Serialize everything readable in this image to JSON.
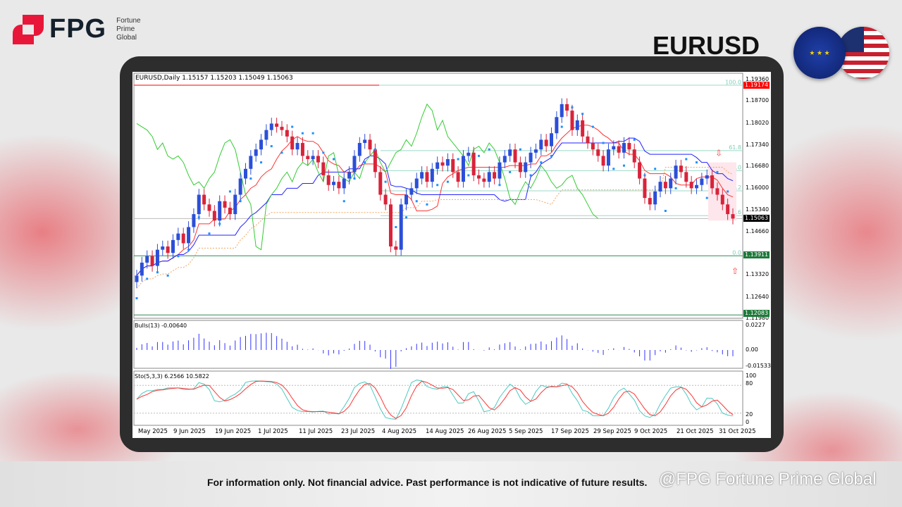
{
  "brand": {
    "name": "FPG",
    "sub": [
      "Fortune",
      "Prime",
      "Global"
    ]
  },
  "symbol": "EURUSD",
  "flags": {
    "left": "EU",
    "right": "US"
  },
  "chart": {
    "header": "EURUSD,Daily  1.15157 1.15203 1.15049 1.15063",
    "price_axis": [
      "1.19360",
      "1.18700",
      "1.18020",
      "1.17340",
      "1.16680",
      "1.16000",
      "1.15340",
      "1.14660",
      "1.13320",
      "1.12640",
      "1.11980"
    ],
    "badges": {
      "resistance": "1.19174",
      "current": "1.15063",
      "support1": "1.13911",
      "support2": "1.12083"
    },
    "fib_labels": [
      "100.0",
      "61.8",
      "50.0",
      "38.2",
      "23.6",
      "0.0"
    ],
    "bulls_label": "Bulls(13) -0.00640",
    "bulls_axis": [
      "0.0227",
      "0.00",
      "-0.01533"
    ],
    "sto_label": "Sto(5,3,3) 6.2566 10.5822",
    "sto_axis": [
      "100",
      "80",
      "20",
      "0"
    ],
    "dates": [
      "May 2025",
      "9 Jun 2025",
      "19 Jun 2025",
      "1 Jul 2025",
      "11 Jul 2025",
      "23 Jul 2025",
      "4 Aug 2025",
      "14 Aug 2025",
      "26 Aug 2025",
      "5 Sep 2025",
      "17 Sep 2025",
      "29 Sep 2025",
      "9 Oct 2025",
      "21 Oct 2025",
      "31 Oct 2025"
    ]
  },
  "chart_data": {
    "type": "candlestick",
    "title": "EURUSD,Daily",
    "ylim": [
      1.1198,
      1.1936
    ],
    "fib": {
      "low": 1.13911,
      "high": 1.19174,
      "levels": [
        100,
        61.8,
        50,
        38.2,
        23.6,
        0
      ]
    },
    "closes": [
      1.133,
      1.137,
      1.139,
      1.136,
      1.141,
      1.142,
      1.14,
      1.144,
      1.146,
      1.143,
      1.148,
      1.152,
      1.158,
      1.155,
      1.153,
      1.15,
      1.156,
      1.154,
      1.152,
      1.158,
      1.163,
      1.166,
      1.17,
      1.172,
      1.175,
      1.178,
      1.18,
      1.179,
      1.178,
      1.176,
      1.172,
      1.174,
      1.17,
      1.169,
      1.17,
      1.168,
      1.164,
      1.161,
      1.162,
      1.16,
      1.163,
      1.165,
      1.17,
      1.174,
      1.175,
      1.172,
      1.165,
      1.158,
      1.155,
      1.142,
      1.141,
      1.155,
      1.158,
      1.16,
      1.163,
      1.165,
      1.162,
      1.166,
      1.168,
      1.167,
      1.169,
      1.165,
      1.162,
      1.17,
      1.171,
      1.164,
      1.163,
      1.162,
      1.165,
      1.163,
      1.168,
      1.17,
      1.172,
      1.168,
      1.165,
      1.168,
      1.171,
      1.172,
      1.175,
      1.173,
      1.177,
      1.182,
      1.186,
      1.184,
      1.178,
      1.181,
      1.176,
      1.174,
      1.172,
      1.17,
      1.167,
      1.172,
      1.173,
      1.171,
      1.174,
      1.172,
      1.168,
      1.163,
      1.157,
      1.155,
      1.159,
      1.162,
      1.16,
      1.163,
      1.167,
      1.165,
      1.162,
      1.16,
      1.161,
      1.163,
      1.164,
      1.16,
      1.158,
      1.155,
      1.152,
      1.15063
    ]
  },
  "footer": {
    "disclaimer": "For information only. Not financial advice. Past performance is not indicative of future results.",
    "watermark": "@FPG Fortune Prime Global"
  }
}
